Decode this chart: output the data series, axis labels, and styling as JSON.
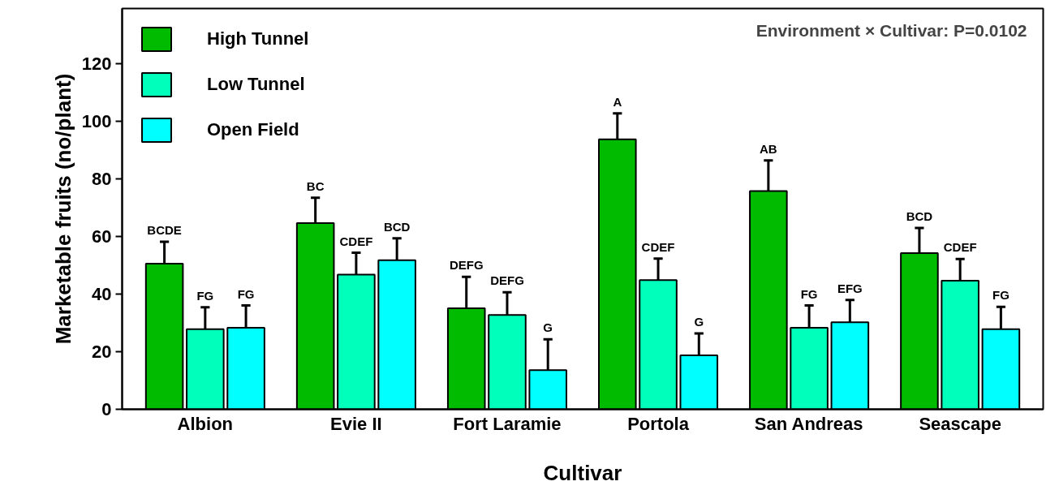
{
  "chart_data": {
    "type": "bar",
    "xlabel": "Cultivar",
    "ylabel": "Marketable fruits (no/plant)",
    "annotations": [
      "Environment × Cultivar: P=0.0102"
    ],
    "categories": [
      "Albion",
      "Evie II",
      "Fort Laramie",
      "Portola",
      "San Andreas",
      "Seascape"
    ],
    "series": [
      {
        "name": "High Tunnel",
        "color": "#00bb00",
        "values": [
          50.5,
          64.6,
          35.0,
          93.6,
          75.7,
          54.2
        ],
        "errors": [
          [
            50.5,
            58.1
          ],
          [
            64.6,
            73.4
          ],
          [
            35.0,
            45.9
          ],
          [
            93.6,
            102.6
          ],
          [
            75.7,
            86.3
          ],
          [
            54.2,
            62.9
          ]
        ],
        "value_labels": [
          "BCDE",
          "BC",
          "DEFG",
          "A",
          "AB",
          "BCD"
        ]
      },
      {
        "name": "Low Tunnel",
        "color": "#00ffbb",
        "values": [
          27.8,
          46.7,
          32.7,
          44.8,
          28.3,
          44.6
        ],
        "errors": [
          [
            27.8,
            35.4
          ],
          [
            46.7,
            54.3
          ],
          [
            32.7,
            40.6
          ],
          [
            44.8,
            52.3
          ],
          [
            28.3,
            36.0
          ],
          [
            44.6,
            52.1
          ]
        ],
        "value_labels": [
          "FG",
          "CDEF",
          "DEFG",
          "CDEF",
          "FG",
          "CDEF"
        ]
      },
      {
        "name": "Open Field",
        "color": "#00ffff",
        "values": [
          28.3,
          51.7,
          13.6,
          18.7,
          30.2,
          27.8
        ],
        "errors": [
          [
            28.3,
            36.0
          ],
          [
            51.7,
            59.3
          ],
          [
            13.6,
            24.3
          ],
          [
            18.7,
            26.3
          ],
          [
            30.2,
            37.9
          ],
          [
            27.8,
            35.5
          ]
        ],
        "value_labels": [
          "FG",
          "BCD",
          "G",
          "G",
          "EFG",
          "FG"
        ]
      }
    ],
    "ylim": [
      0,
      139
    ],
    "yticks": [
      0,
      20,
      40,
      60,
      80,
      100,
      120
    ],
    "grid": false,
    "legend": "top left"
  }
}
